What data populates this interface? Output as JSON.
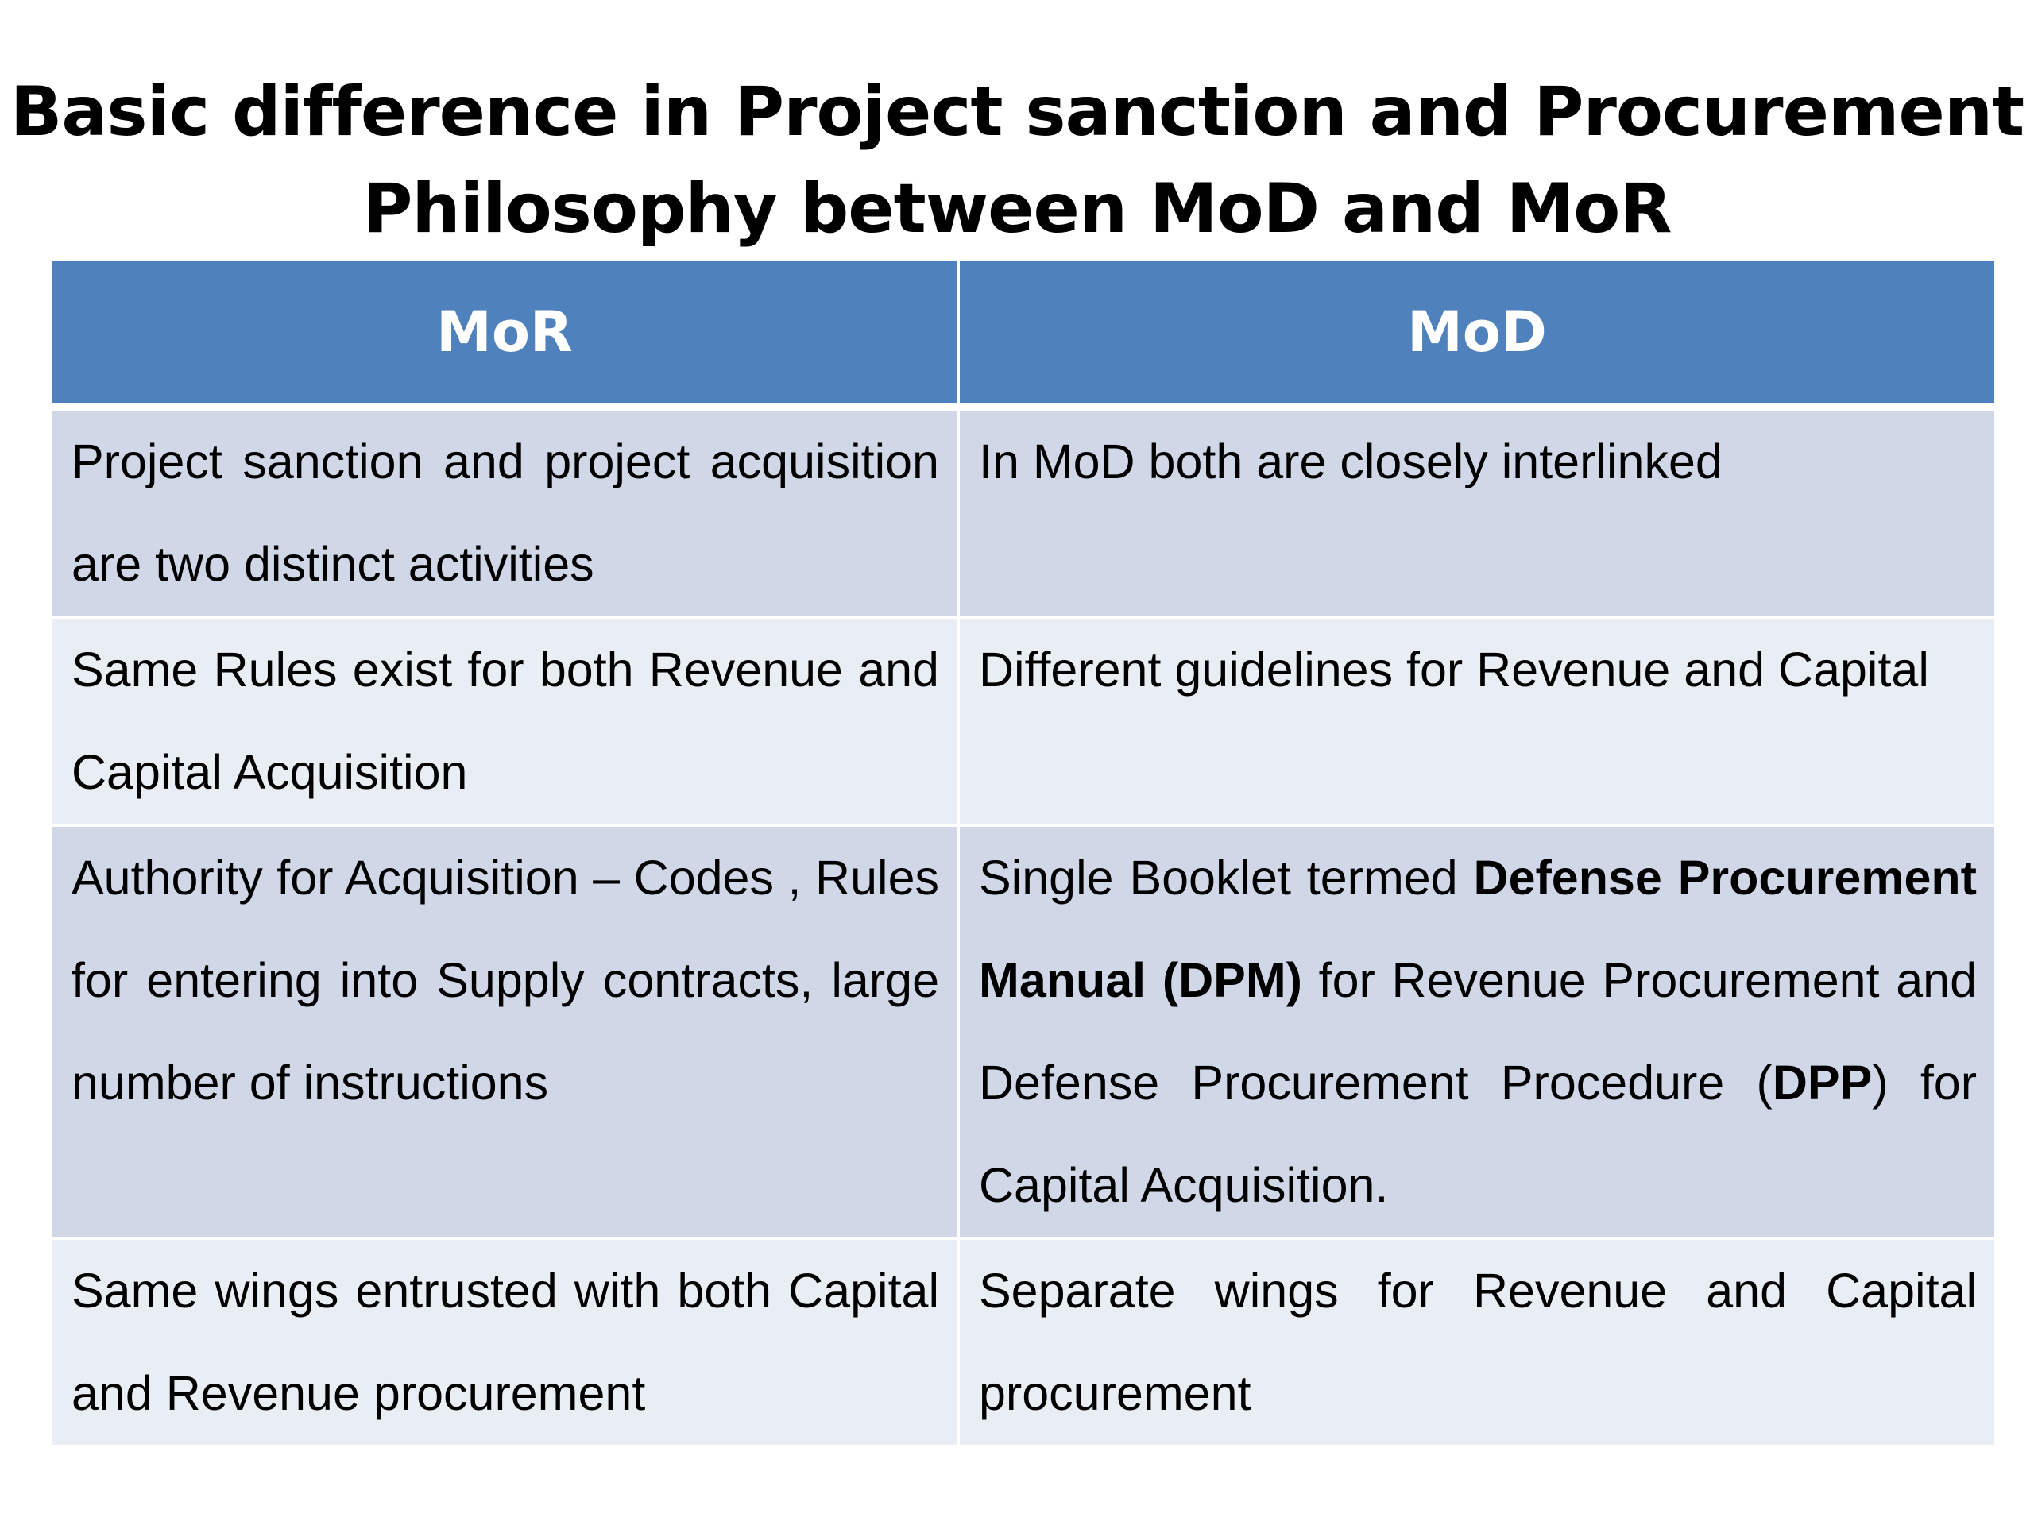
{
  "title": {
    "line1": "Basic difference in Project sanction and Procurement",
    "line2": "Philosophy between MoD and MoR"
  },
  "table": {
    "headers": [
      "MoR",
      "MoD"
    ],
    "rows": [
      {
        "mor": "Project sanction and project acquisition are  two distinct activities",
        "mod": "In MoD both are closely interlinked"
      },
      {
        "mor": "Same Rules exist for both Revenue and Capital Acquisition",
        "mod": "Different guidelines for Revenue and Capital"
      },
      {
        "mor": "Authority for Acquisition – Codes , Rules for entering  into Supply contracts, large number of instructions",
        "mod_parts": {
          "p1": "Single Booklet termed ",
          "dpm_name": "Defense Procurement Manual",
          "p2": " ",
          "dpm_abbr": "(DPM)",
          "p3": " for Revenue Procurement and Defense Procurement Procedure (",
          "dpp_abbr": "DPP",
          "p4": ") for Capital Acquisition."
        }
      },
      {
        "mor": "Same wings entrusted with both Capital and Revenue procurement",
        "mod": "Separate wings for Revenue and Capital procurement"
      }
    ]
  },
  "colors": {
    "header_bg": "#4f81bd",
    "row_dark": "#d0d8e8",
    "row_light": "#e9edf4"
  }
}
